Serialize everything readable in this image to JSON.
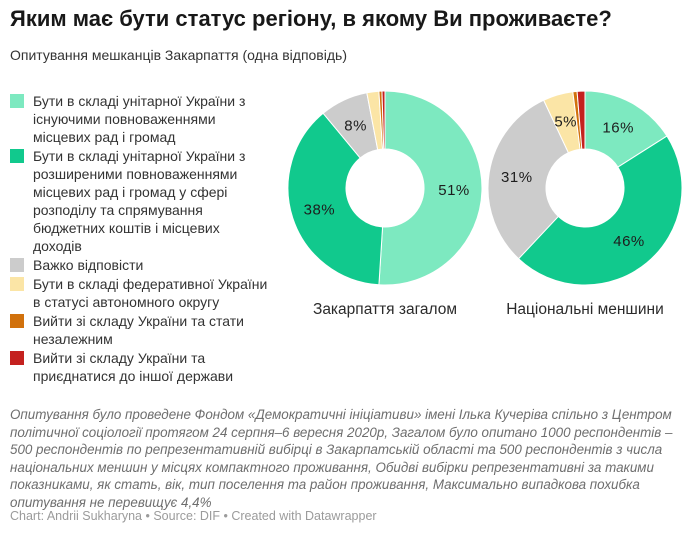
{
  "header": {
    "title": "Яким має бути статус регіону, в якому Ви проживаєте?",
    "subtitle": "Опитування мешканців Закарпаття (одна відповідь)"
  },
  "legend": {
    "items": [
      {
        "label": "Бути в складі унітарної України з існуючими повноваженнями місцевих рад і громад",
        "color": "#7de9c0"
      },
      {
        "label": "Бути в складі унітарної України з розширеними повноваженнями місцевих рад і громад у сфері розподілу та спрямування бюджетних коштів і місцевих доходів",
        "color": "#11c98d"
      },
      {
        "label": "Важко відповісти",
        "color": "#cccccc"
      },
      {
        "label": "Бути в складі федеративної України в статусі автономного округу",
        "color": "#fbe5a6"
      },
      {
        "label": "Вийти зі складу України та стати незалежним",
        "color": "#d1710c"
      },
      {
        "label": "Вийти зі складу України та приєднатися до іншої держави",
        "color": "#c4211f"
      }
    ]
  },
  "chart_data": [
    {
      "type": "pie",
      "donut": true,
      "title": "Закарпаття загалом",
      "slices": [
        {
          "name": "Бути в складі унітарної України з існуючими повноваженнями місцевих рад і громад",
          "value": 51,
          "display": "51%",
          "color": "#7de9c0"
        },
        {
          "name": "Бути в складі унітарної України з розширеними повноваженнями місцевих рад і громад у сфері розподілу та спрямування бюджетних коштів і місцевих доходів",
          "value": 38,
          "display": "38%",
          "color": "#11c98d"
        },
        {
          "name": "Важко відповісти",
          "value": 8,
          "display": "8%",
          "color": "#cccccc"
        },
        {
          "name": "Бути в складі федеративної України в статусі автономного округу",
          "value": 2,
          "display": "",
          "color": "#fbe5a6"
        },
        {
          "name": "Вийти зі складу України та стати незалежним",
          "value": 0.5,
          "display": "",
          "color": "#d1710c"
        },
        {
          "name": "Вийти зі складу України та приєднатися до іншої держави",
          "value": 0.5,
          "display": "",
          "color": "#c4211f"
        }
      ]
    },
    {
      "type": "pie",
      "donut": true,
      "title": "Національні меншини",
      "slices": [
        {
          "name": "Бути в складі унітарної України з існуючими повноваженнями місцевих рад і громад",
          "value": 16,
          "display": "16%",
          "color": "#7de9c0"
        },
        {
          "name": "Бути в складі унітарної України з розширеними повноваженнями місцевих рад і громад у сфері розподілу та спрямування бюджетних коштів і місцевих доходів",
          "value": 46,
          "display": "46%",
          "color": "#11c98d"
        },
        {
          "name": "Важко відповісти",
          "value": 31,
          "display": "31%",
          "color": "#cccccc"
        },
        {
          "name": "Бути в складі федеративної України в статусі автономного округу",
          "value": 5,
          "display": "5%",
          "color": "#fbe5a6"
        },
        {
          "name": "Вийти зі складу України та стати незалежним",
          "value": 0.7,
          "display": "",
          "color": "#d1710c"
        },
        {
          "name": "Вийти зі складу України та приєднатися до іншої держави",
          "value": 1.3,
          "display": "",
          "color": "#c4211f"
        }
      ]
    }
  ],
  "footnote": "Опитування було проведене Фондом «Демократичні ініціативи» імені Ілька Кучеріва спільно з Центром політичної соціології протягом 24 серпня–6 вересня 2020р, Загалом було опитано 1000 респондентів – 500 респондентів по репрезентативній вибірці в Закарпатській області та 500 респондентів з числа національних меншин у місцях компактного проживання, Обидві вибірки репрезентативні за такими показниками, як стать, вік, тип поселення та район проживання, Максимально випадкова похибка опитування не перевищує 4,4%",
  "credit": "Chart: Andrii Sukharyna • Source: DIF • Created with Datawrapper"
}
